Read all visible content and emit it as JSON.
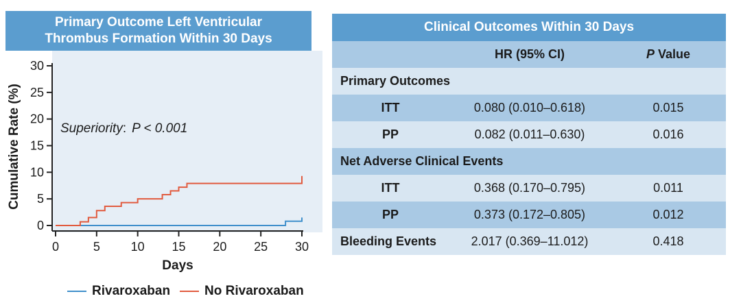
{
  "left_panel": {
    "title_line1": "Primary Outcome Left Ventricular",
    "title_line2": "Thrombus Formation Within 30 Days"
  },
  "chart_data": {
    "type": "line",
    "step": true,
    "xlabel": "Days",
    "ylabel": "Cumulative Rate (%)",
    "xlim": [
      0,
      30
    ],
    "ylim": [
      0,
      30
    ],
    "xticks": [
      0,
      5,
      10,
      15,
      20,
      25,
      30
    ],
    "yticks": [
      0,
      5,
      10,
      15,
      20,
      25,
      30
    ],
    "annotation": {
      "prefix": "Superiority",
      "colon": ":",
      "value": "P < 0.001"
    },
    "series": [
      {
        "name": "Rivaroxaban",
        "color": "#3f8fcb",
        "points": [
          [
            0,
            0
          ],
          [
            28,
            0
          ],
          [
            28,
            0.8
          ],
          [
            30,
            0.8
          ],
          [
            30,
            1.5
          ]
        ]
      },
      {
        "name": "No Rivaroxaban",
        "color": "#e15a3e",
        "points": [
          [
            0,
            0
          ],
          [
            3,
            0
          ],
          [
            3,
            0.7
          ],
          [
            4,
            0.7
          ],
          [
            4,
            1.5
          ],
          [
            5,
            1.5
          ],
          [
            5,
            2.8
          ],
          [
            6,
            2.8
          ],
          [
            6,
            3.6
          ],
          [
            8,
            3.6
          ],
          [
            8,
            4.3
          ],
          [
            10,
            4.3
          ],
          [
            10,
            5.0
          ],
          [
            13,
            5.0
          ],
          [
            13,
            5.8
          ],
          [
            14,
            5.8
          ],
          [
            14,
            6.5
          ],
          [
            15,
            6.5
          ],
          [
            15,
            7.2
          ],
          [
            16,
            7.2
          ],
          [
            16,
            7.9
          ],
          [
            30,
            7.9
          ],
          [
            30,
            9.3
          ]
        ]
      }
    ]
  },
  "legend": {
    "items": [
      {
        "label": "Rivaroxaban",
        "color": "#3f8fcb"
      },
      {
        "label": "No Rivaroxaban",
        "color": "#e15a3e"
      }
    ]
  },
  "table": {
    "title": "Clinical Outcomes Within 30 Days",
    "header_hr": "HR (95% CI)",
    "header_p_italic": "P",
    "header_p_rest": " Value",
    "sections": {
      "primary": {
        "title": "Primary Outcomes",
        "rows": [
          {
            "label": "ITT",
            "hr": "0.080 (0.010–0.618)",
            "p": "0.015"
          },
          {
            "label": "PP",
            "hr": "0.082 (0.011–0.630)",
            "p": "0.016"
          }
        ]
      },
      "nace": {
        "title": "Net Adverse Clinical Events",
        "rows": [
          {
            "label": "ITT",
            "hr": "0.368 (0.170–0.795)",
            "p": "0.011"
          },
          {
            "label": "PP",
            "hr": "0.373 (0.172–0.805)",
            "p": "0.012"
          }
        ]
      },
      "bleeding": {
        "label": "Bleeding Events",
        "hr": "2.017 (0.369–11.012)",
        "p": "0.418"
      }
    }
  }
}
